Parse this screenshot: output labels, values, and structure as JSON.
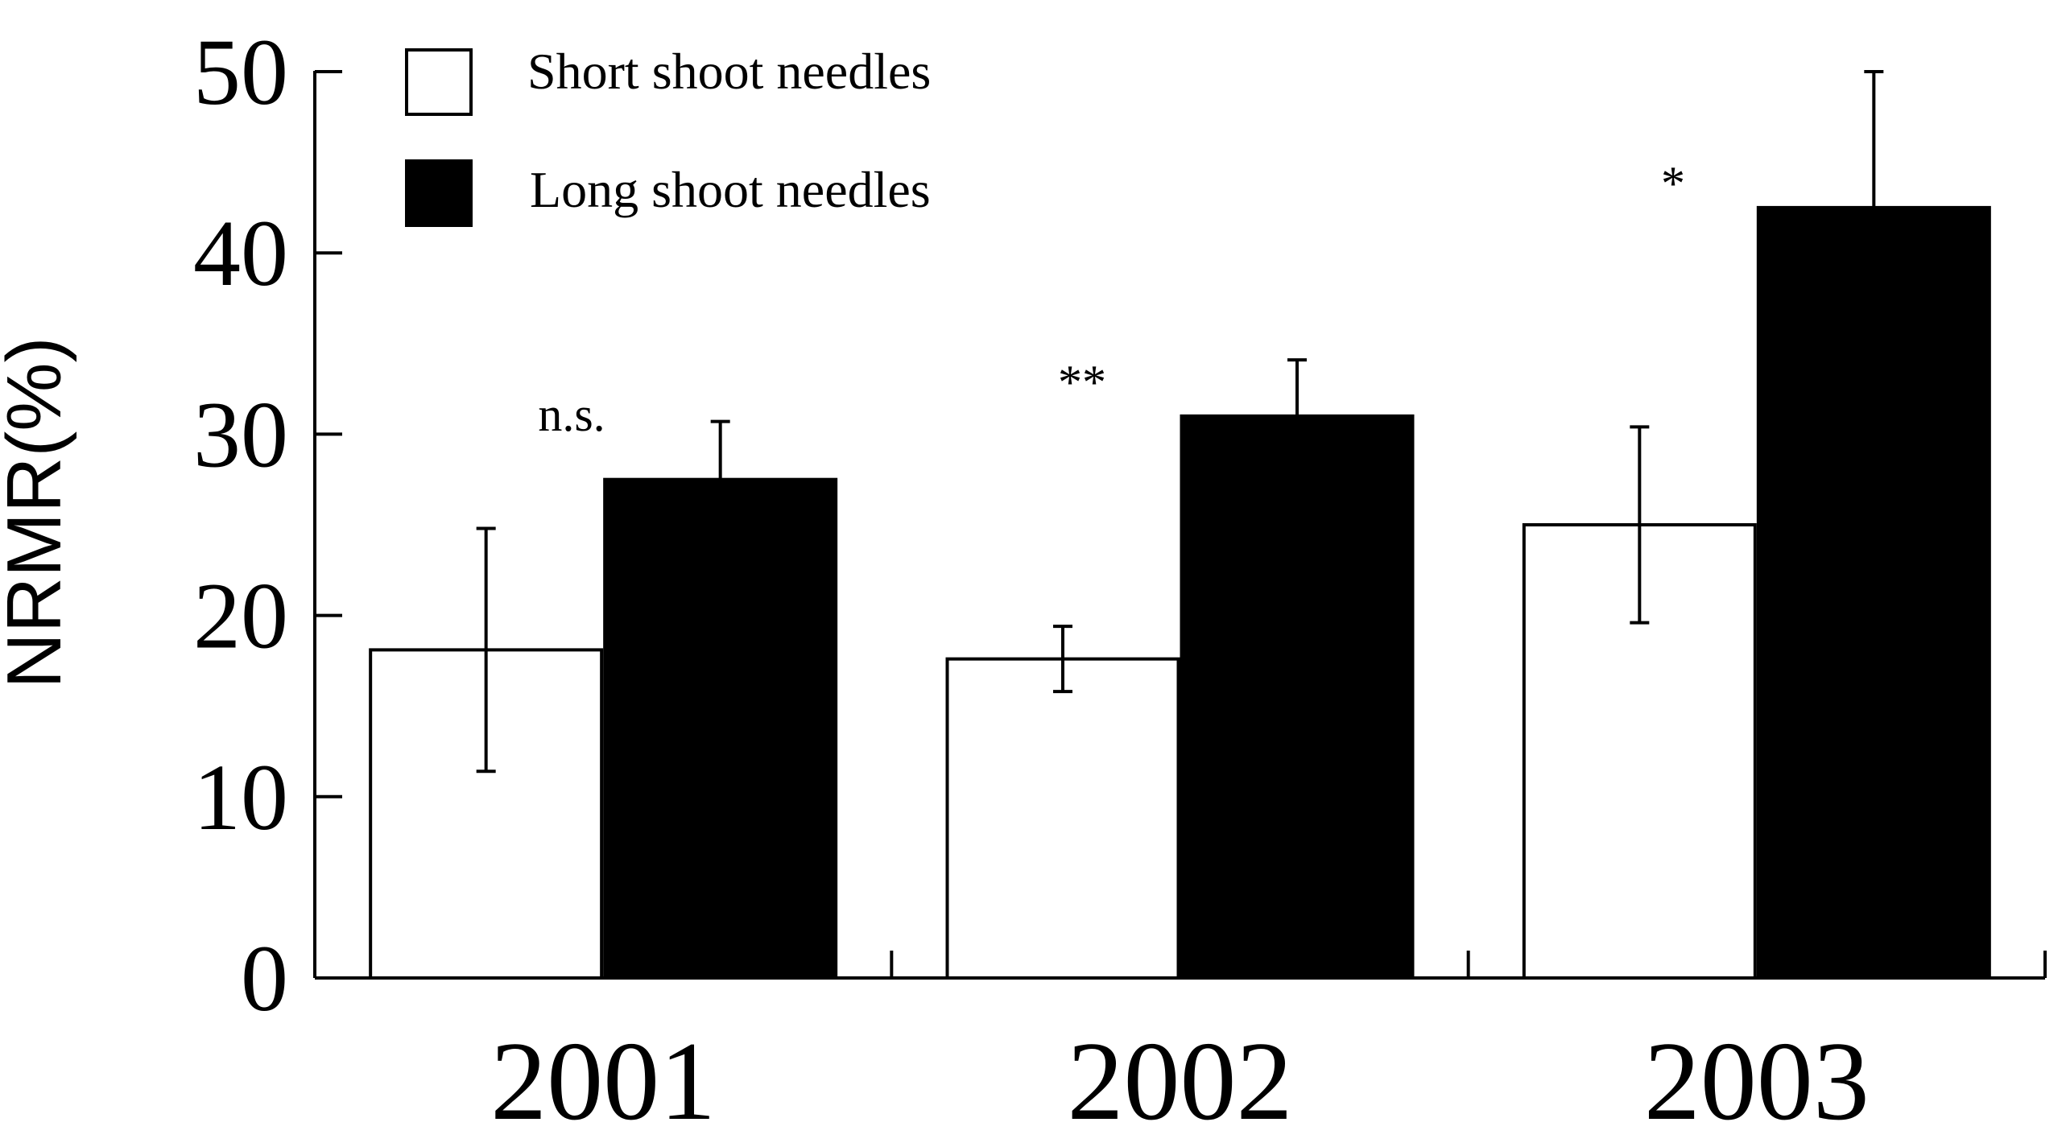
{
  "chart_data": {
    "type": "bar",
    "title": "",
    "xlabel": "",
    "ylabel": "NRMR(%)",
    "ylim": [
      0,
      50
    ],
    "yticks": [
      0,
      10,
      20,
      30,
      40,
      50
    ],
    "categories": [
      "2001",
      "2002",
      "2003"
    ],
    "series": [
      {
        "name": "Short shoot needles",
        "fill": "#ffffff",
        "values": [
          18.1,
          17.6,
          25.0
        ],
        "errors": [
          6.7,
          1.8,
          5.4
        ]
      },
      {
        "name": "Long shoot needles",
        "fill": "#000000",
        "values": [
          27.5,
          31.0,
          42.5
        ],
        "errors": [
          3.2,
          3.1,
          7.5
        ]
      }
    ],
    "annotations": [
      "n.s.",
      "**",
      "*"
    ],
    "legend_position": "top-left",
    "grid": false
  }
}
